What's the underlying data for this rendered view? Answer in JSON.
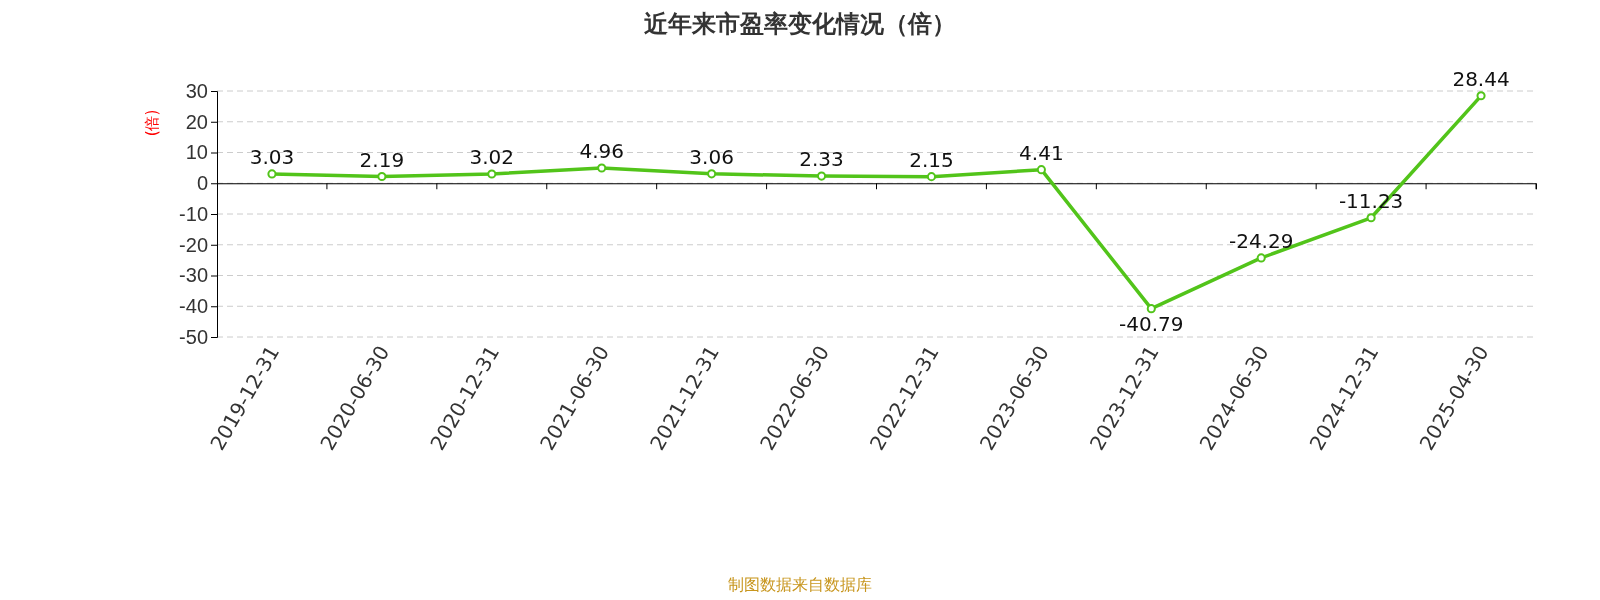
{
  "chart_data": {
    "type": "line",
    "title": "近年来市盈率变化情况（倍）",
    "ylabel": "(倍)",
    "categories": [
      "2019-12-31",
      "2020-06-30",
      "2020-12-31",
      "2021-06-30",
      "2021-12-31",
      "2022-06-30",
      "2022-12-31",
      "2023-06-30",
      "2023-12-31",
      "2024-06-30",
      "2024-12-31",
      "2025-04-30"
    ],
    "series": [
      {
        "color": "#52c41a",
        "values": [
          3.03,
          2.19,
          3.02,
          4.96,
          3.06,
          2.33,
          2.15,
          4.41,
          -40.79,
          -24.29,
          -11.23,
          28.44
        ]
      }
    ],
    "ylim": [
      -50,
      30
    ],
    "yticks": [
      -50,
      -40,
      -30,
      -20,
      -10,
      0,
      10,
      20,
      30
    ],
    "grid": "y",
    "marker": "circle",
    "line_style": "solid",
    "data_labels": true,
    "annotations": [
      "制图数据来自数据库"
    ]
  }
}
